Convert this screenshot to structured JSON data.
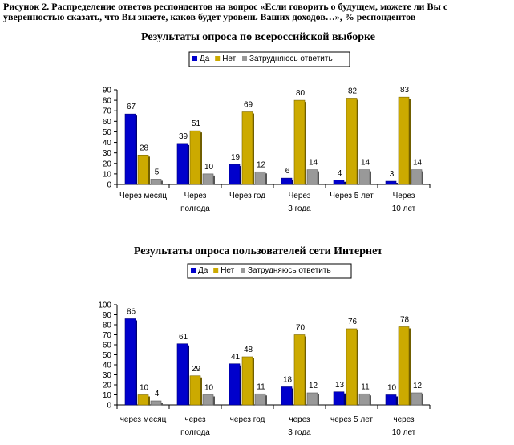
{
  "caption": "Рисунок 2. Распределение ответов респондентов на вопрос «Если говорить о будущем, можете ли Вы с уверенностью сказать, что Вы знаете, каков будет уровень Ваших доходов…», % респондентов",
  "chart_data": [
    {
      "type": "bar",
      "title": "Результаты опроса по всероссийской выборке",
      "categories": [
        "Через месяц",
        "Через полгода",
        "Через год",
        "Через 3 года",
        "Через 5 лет",
        "Через 10 лет"
      ],
      "series": [
        {
          "name": "Да",
          "color": "#0000cc",
          "values": [
            67,
            39,
            19,
            6,
            4,
            3
          ]
        },
        {
          "name": "Нет",
          "color": "#ccaa00",
          "values": [
            28,
            51,
            69,
            80,
            82,
            83
          ]
        },
        {
          "name": "Затрудняюсь ответить",
          "color": "#999999",
          "values": [
            5,
            10,
            12,
            14,
            14,
            14
          ]
        }
      ],
      "ylim": [
        0,
        90
      ],
      "yticks": [
        0,
        10,
        20,
        30,
        40,
        50,
        60,
        70,
        80,
        90
      ],
      "legend": "top",
      "grid": false
    },
    {
      "type": "bar",
      "title": "Результаты опроса пользователей сети Интернет",
      "categories": [
        "через месяц",
        "через полгода",
        "через год",
        "через 3 года",
        "через 5 лет",
        "через 10 лет"
      ],
      "series": [
        {
          "name": "Да",
          "color": "#0000cc",
          "values": [
            86,
            61,
            41,
            18,
            13,
            10
          ]
        },
        {
          "name": "Нет",
          "color": "#ccaa00",
          "values": [
            10,
            29,
            48,
            70,
            76,
            78
          ]
        },
        {
          "name": "Затрудняюсь ответить",
          "color": "#999999",
          "values": [
            4,
            10,
            11,
            12,
            11,
            12
          ]
        }
      ],
      "ylim": [
        0,
        100
      ],
      "yticks": [
        0,
        10,
        20,
        30,
        40,
        50,
        60,
        70,
        80,
        90,
        100
      ],
      "legend": "top",
      "grid": false
    }
  ]
}
